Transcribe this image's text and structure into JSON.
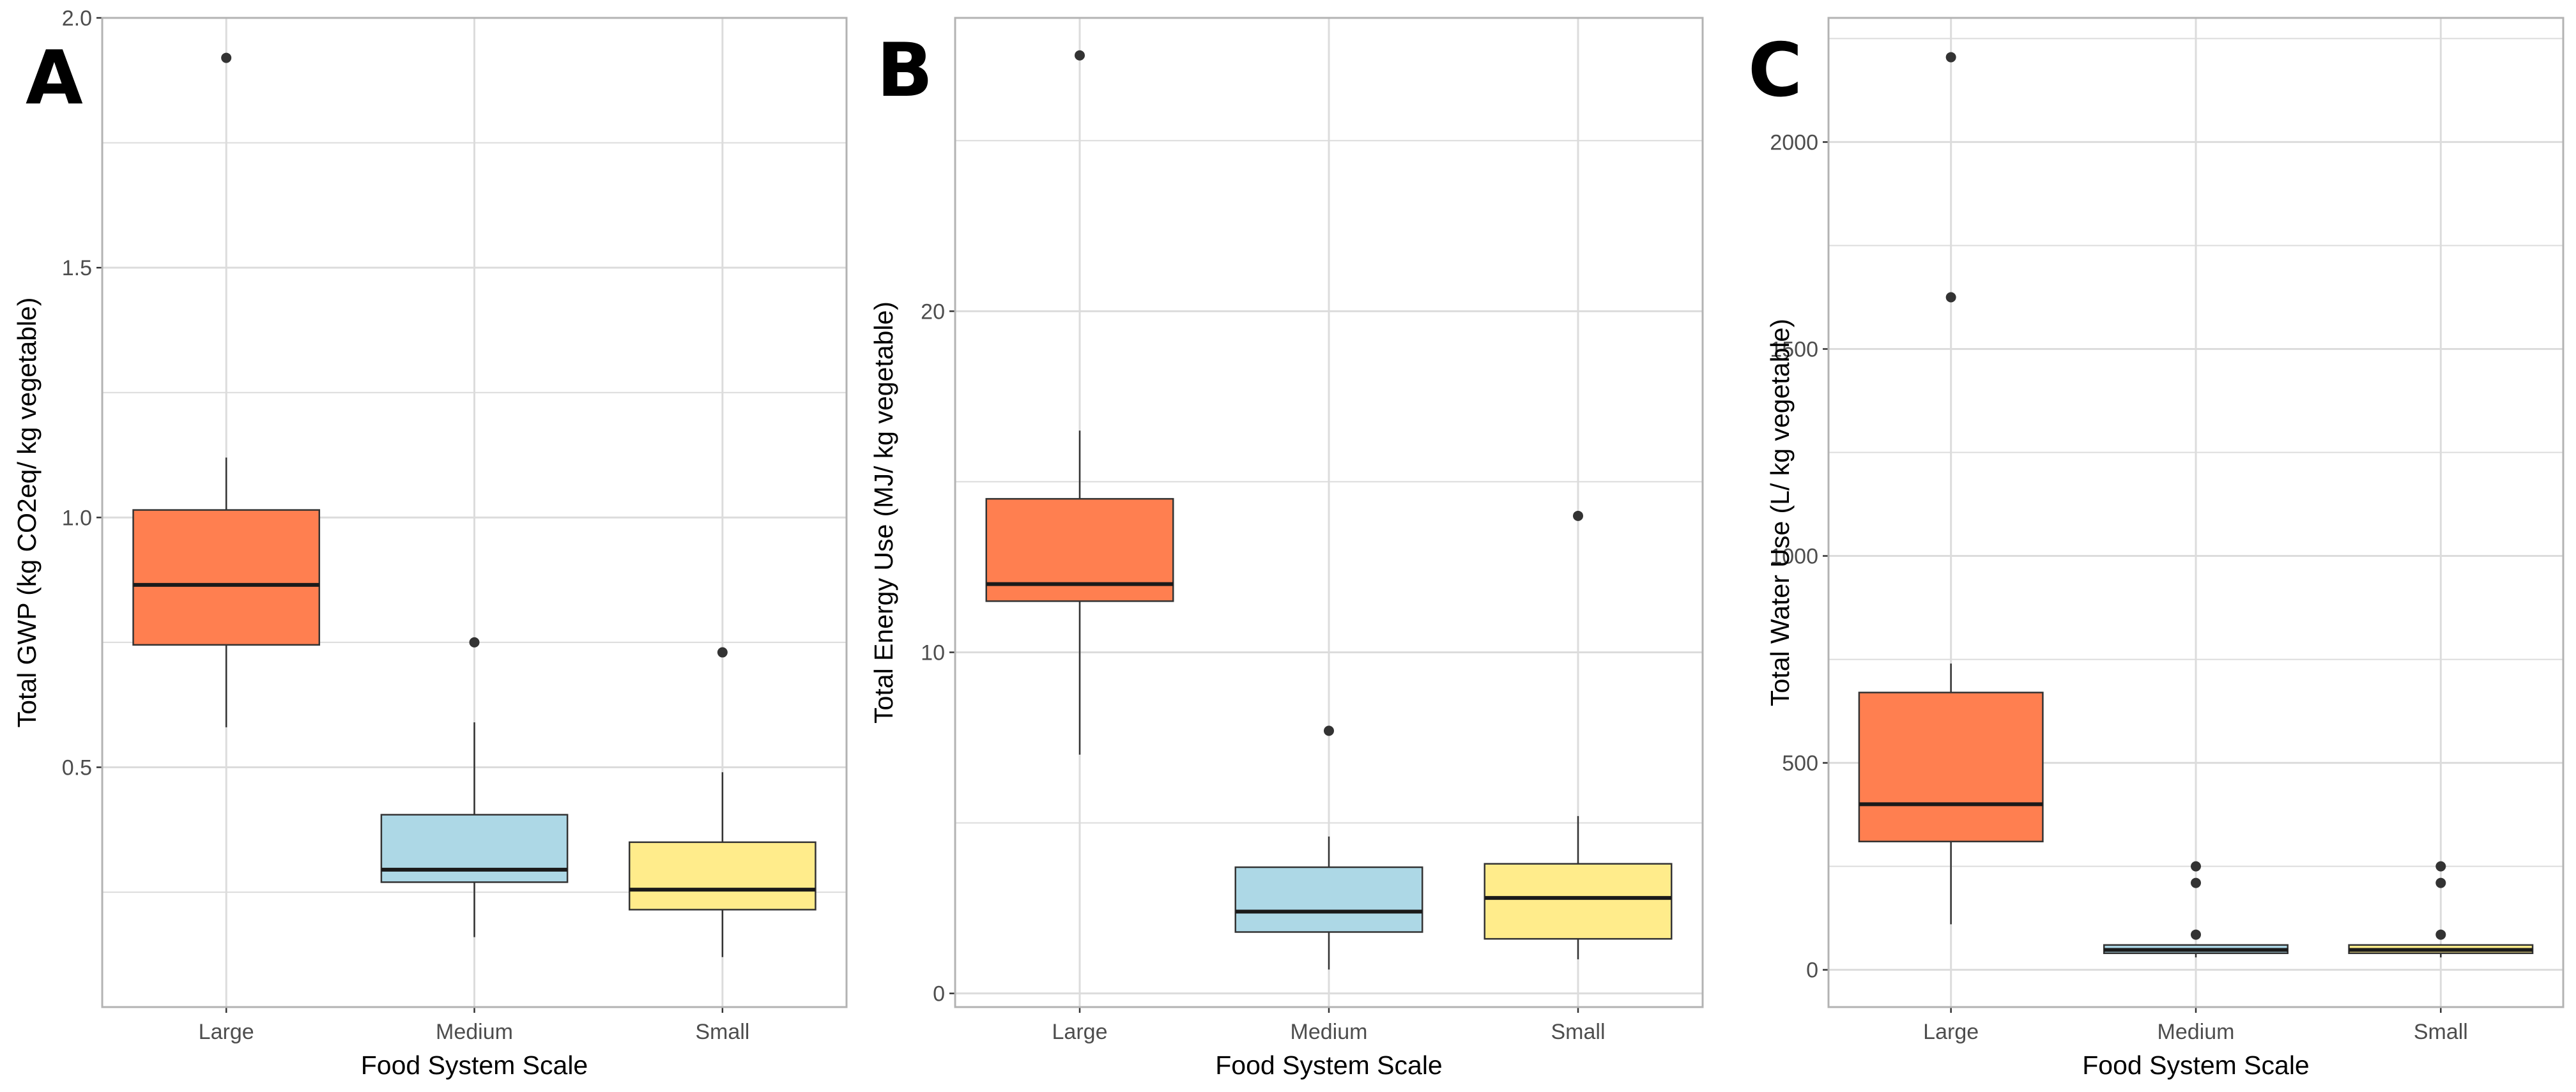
{
  "colors": {
    "Large": "#ff7f50",
    "Medium": "#add8e6",
    "Small": "#ffec8b",
    "grid": "#dcdcdc",
    "border": "#b3b3b3"
  },
  "chart_data": [
    {
      "type": "boxplot",
      "panel_letter": "A",
      "xlabel": "Food System Scale",
      "ylabel": "Total GWP (kg CO2eq/ kg vegetable)",
      "categories": [
        "Large",
        "Medium",
        "Small"
      ],
      "ylim": [
        0.02,
        2.0
      ],
      "major_ticks": [
        0.5,
        1.0,
        1.5,
        2.0
      ],
      "tick_labels": [
        "0.5",
        "1.0",
        "1.5",
        "2.0"
      ],
      "minor_ticks": [
        0.25,
        0.75,
        1.25,
        1.75
      ],
      "boxes": [
        {
          "category": "Large",
          "whisker_low": 0.58,
          "q1": 0.745,
          "median": 0.865,
          "q3": 1.015,
          "whisker_high": 1.12,
          "outliers": [
            1.92
          ]
        },
        {
          "category": "Medium",
          "whisker_low": 0.16,
          "q1": 0.27,
          "median": 0.295,
          "q3": 0.405,
          "whisker_high": 0.59,
          "outliers": [
            0.75
          ]
        },
        {
          "category": "Small",
          "whisker_low": 0.12,
          "q1": 0.215,
          "median": 0.255,
          "q3": 0.35,
          "whisker_high": 0.49,
          "outliers": [
            0.73
          ]
        }
      ]
    },
    {
      "type": "boxplot",
      "panel_letter": "B",
      "xlabel": "Food System Scale",
      "ylabel": "Total Energy Use (MJ/ kg vegetable)",
      "categories": [
        "Large",
        "Medium",
        "Small"
      ],
      "ylim": [
        -0.4,
        28.6
      ],
      "major_ticks": [
        0,
        10,
        20
      ],
      "tick_labels": [
        "0",
        "10",
        "20"
      ],
      "minor_ticks": [
        5,
        15,
        25
      ],
      "boxes": [
        {
          "category": "Large",
          "whisker_low": 7.0,
          "q1": 11.5,
          "median": 12.0,
          "q3": 14.5,
          "whisker_high": 16.5,
          "outliers": [
            27.5
          ]
        },
        {
          "category": "Medium",
          "whisker_low": 0.7,
          "q1": 1.8,
          "median": 2.4,
          "q3": 3.7,
          "whisker_high": 4.6,
          "outliers": [
            7.7
          ]
        },
        {
          "category": "Small",
          "whisker_low": 1.0,
          "q1": 1.6,
          "median": 2.8,
          "q3": 3.8,
          "whisker_high": 5.2,
          "outliers": [
            14.0
          ]
        }
      ]
    },
    {
      "type": "boxplot",
      "panel_letter": "C",
      "xlabel": "Food System Scale",
      "ylabel": "Total Water Use (L/ kg vegetable)",
      "categories": [
        "Large",
        "Medium",
        "Small"
      ],
      "ylim": [
        -90,
        2300
      ],
      "major_ticks": [
        0,
        500,
        1000,
        1500,
        2000
      ],
      "tick_labels": [
        "0",
        "500",
        "1000",
        "1500",
        "2000"
      ],
      "minor_ticks": [
        250,
        750,
        1250,
        1750,
        2250
      ],
      "boxes": [
        {
          "category": "Large",
          "whisker_low": 110,
          "q1": 310,
          "median": 400,
          "q3": 670,
          "whisker_high": 740,
          "outliers": [
            1625,
            2205
          ]
        },
        {
          "category": "Medium",
          "whisker_low": 30,
          "q1": 40,
          "median": 48,
          "q3": 60,
          "whisker_high": 62,
          "outliers": [
            85,
            210,
            250
          ]
        },
        {
          "category": "Small",
          "whisker_low": 30,
          "q1": 40,
          "median": 48,
          "q3": 60,
          "whisker_high": 62,
          "outliers": [
            85,
            210,
            250
          ]
        }
      ]
    }
  ]
}
